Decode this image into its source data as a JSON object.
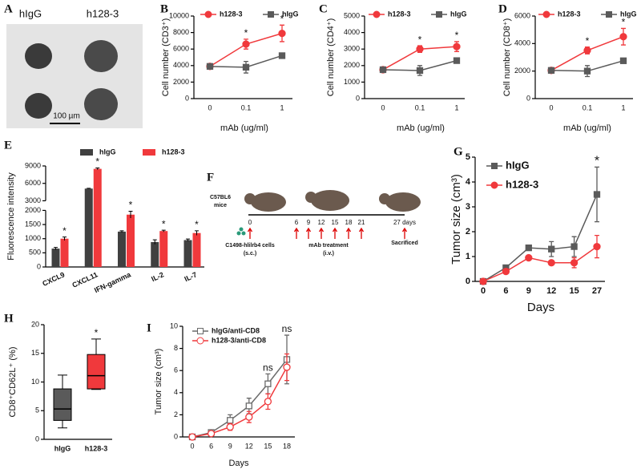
{
  "image_panel": {
    "panel": "A",
    "labels": [
      "hIgG",
      "h128-3"
    ],
    "scale_bar": "100 µm"
  },
  "schedule_panel": {
    "panel": "F",
    "strain": [
      "C57BL6",
      "mice"
    ],
    "days": [
      "0",
      "6",
      "9",
      "12",
      "15",
      "18",
      "21",
      "27 days"
    ],
    "cells": [
      "C1498-hlilrb4 cells",
      "(s.c.)"
    ],
    "treatment": [
      "mAb treatment",
      "(i.v.)"
    ],
    "end": "Sacrificed"
  },
  "chart_data": [
    {
      "type": "line",
      "panel": "B",
      "ylabel": "Cell number (CD3⁺)",
      "xlabel": "mAb (ug/ml)",
      "legend": "top",
      "categories": [
        "0",
        "0.1",
        "1"
      ],
      "ylim": [
        0,
        10000
      ],
      "yticks": [
        0,
        2000,
        4000,
        6000,
        8000,
        10000
      ],
      "series": [
        {
          "name": "h128-3",
          "color": "#f0393c",
          "marker": "circle",
          "values": [
            3900,
            6600,
            7900
          ],
          "errors": [
            100,
            600,
            1000
          ]
        },
        {
          "name": "hIgG",
          "color": "#5a5a5a",
          "marker": "square",
          "values": [
            3900,
            3800,
            5200
          ],
          "errors": [
            100,
            700,
            200
          ]
        }
      ],
      "annotations": [
        {
          "text": "*",
          "category": "0.1"
        },
        {
          "text": "*",
          "category": "1"
        }
      ]
    },
    {
      "type": "line",
      "panel": "C",
      "ylabel": "Cell number (CD4⁺)",
      "xlabel": "mAb (ug/ml)",
      "legend": "top",
      "categories": [
        "0",
        "0.1",
        "1"
      ],
      "ylim": [
        0,
        5000
      ],
      "yticks": [
        0,
        1000,
        2000,
        3000,
        4000,
        5000
      ],
      "series": [
        {
          "name": "h128-3",
          "color": "#f0393c",
          "marker": "circle",
          "values": [
            1750,
            3000,
            3150
          ],
          "errors": [
            50,
            200,
            300
          ]
        },
        {
          "name": "hIgG",
          "color": "#5a5a5a",
          "marker": "square",
          "values": [
            1750,
            1700,
            2300
          ],
          "errors": [
            50,
            300,
            80
          ]
        }
      ],
      "annotations": [
        {
          "text": "*",
          "category": "0.1"
        },
        {
          "text": "*",
          "category": "1"
        }
      ]
    },
    {
      "type": "line",
      "panel": "D",
      "ylabel": "Cell number (CD8⁺)",
      "xlabel": "mAb (ug/ml)",
      "legend": "top",
      "categories": [
        "0",
        "0.1",
        "1"
      ],
      "ylim": [
        0,
        6000
      ],
      "yticks": [
        0,
        2000,
        4000,
        6000
      ],
      "series": [
        {
          "name": "h128-3",
          "color": "#f0393c",
          "marker": "circle",
          "values": [
            2050,
            3500,
            4500
          ],
          "errors": [
            50,
            250,
            600
          ]
        },
        {
          "name": "hIgG",
          "color": "#5a5a5a",
          "marker": "square",
          "values": [
            2050,
            2000,
            2750
          ],
          "errors": [
            50,
            400,
            100
          ]
        }
      ],
      "annotations": [
        {
          "text": "*",
          "category": "0.1"
        },
        {
          "text": "*",
          "category": "1"
        }
      ]
    },
    {
      "type": "bar",
      "panel": "E",
      "ylabel": "Fluorescence intensity",
      "legend": "top",
      "categories": [
        "CXCL9",
        "CXCL11",
        "IFN-gamma",
        "IL-2",
        "IL-7"
      ],
      "ylim": [
        0,
        9000
      ],
      "ybreak": [
        2000,
        3000
      ],
      "yticks": [
        0,
        500,
        1000,
        1500,
        2000,
        3000,
        6000,
        9000
      ],
      "series": [
        {
          "name": "hIgG",
          "color": "#404040",
          "values": [
            650,
            5100,
            1250,
            880,
            950
          ],
          "errors": [
            40,
            50,
            30,
            80,
            40
          ]
        },
        {
          "name": "h128-3",
          "color": "#f0393c",
          "values": [
            1000,
            8500,
            1850,
            1270,
            1200
          ],
          "errors": [
            60,
            150,
            120,
            30,
            80
          ]
        }
      ],
      "annotations": [
        {
          "text": "*",
          "category": "CXCL9"
        },
        {
          "text": "*",
          "category": "CXCL11"
        },
        {
          "text": "*",
          "category": "IFN-gamma"
        },
        {
          "text": "*",
          "category": "IL-2"
        },
        {
          "text": "*",
          "category": "IL-7"
        }
      ]
    },
    {
      "type": "line",
      "panel": "G",
      "ylabel": "Tumor size (cm³)",
      "xlabel": "Days",
      "legend": "upper left",
      "categories": [
        "0",
        "6",
        "9",
        "12",
        "15",
        "27"
      ],
      "ylim": [
        0,
        5
      ],
      "yticks": [
        0,
        1,
        2,
        3,
        4,
        5
      ],
      "series": [
        {
          "name": "hIgG",
          "color": "#5a5a5a",
          "marker": "square",
          "values": [
            0,
            0.55,
            1.35,
            1.3,
            1.4,
            3.5
          ],
          "errors": [
            0,
            0.05,
            0.05,
            0.3,
            0.4,
            1.1
          ]
        },
        {
          "name": "h128-3",
          "color": "#f0393c",
          "marker": "circle",
          "values": [
            0,
            0.4,
            0.95,
            0.75,
            0.75,
            1.4
          ],
          "errors": [
            0,
            0.05,
            0.05,
            0.05,
            0.2,
            0.45
          ]
        }
      ],
      "annotations": [
        {
          "text": "*",
          "category": "27"
        }
      ]
    },
    {
      "type": "box",
      "panel": "H",
      "ylabel": "CD8⁺CD62L⁺ (%)",
      "categories": [
        "hIgG",
        "h128-3"
      ],
      "ylim": [
        0,
        20
      ],
      "yticks": [
        0,
        5,
        10,
        15,
        20
      ],
      "boxes": [
        {
          "color": "#5a5a5a",
          "min": 2,
          "q1": 3.3,
          "median": 5.3,
          "q3": 8.8,
          "max": 11.2
        },
        {
          "color": "#f0393c",
          "min": 8.7,
          "q1": 8.8,
          "median": 11.1,
          "q3": 14.8,
          "max": 17.5
        }
      ],
      "annotations": [
        {
          "text": "*",
          "category": "h128-3"
        }
      ]
    },
    {
      "type": "line",
      "panel": "I",
      "ylabel": "Tumor size (cm³)",
      "xlabel": "Days",
      "legend": "upper left",
      "categories": [
        "0",
        "6",
        "9",
        "12",
        "15",
        "18"
      ],
      "ylim": [
        0,
        10
      ],
      "yticks": [
        0,
        2,
        4,
        6,
        8,
        10
      ],
      "series": [
        {
          "name": "hIgG/anti-CD8",
          "color": "#6a6a6a",
          "marker": "square",
          "filled": false,
          "values": [
            0,
            0.4,
            1.5,
            2.8,
            4.8,
            7.0
          ],
          "errors": [
            0,
            0.2,
            0.5,
            0.7,
            0.9,
            2.2
          ]
        },
        {
          "name": "h128-3/anti-CD8",
          "color": "#f0393c",
          "marker": "circle",
          "filled": false,
          "values": [
            0,
            0.3,
            0.9,
            1.8,
            3.2,
            6.3
          ],
          "errors": [
            0,
            0.1,
            0.3,
            0.5,
            0.7,
            1.2
          ]
        }
      ],
      "annotations": [
        {
          "text": "ns",
          "category": "15"
        },
        {
          "text": "ns",
          "category": "18"
        }
      ]
    }
  ]
}
